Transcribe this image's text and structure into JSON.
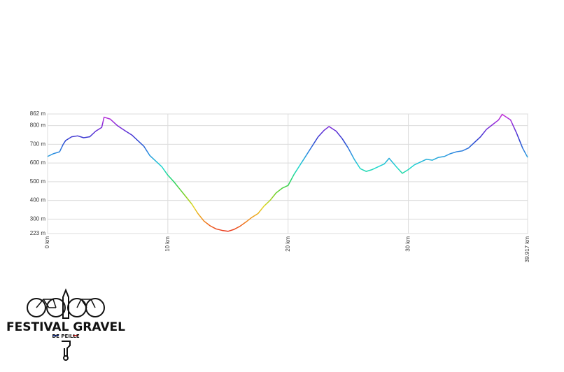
{
  "chart_data": {
    "type": "line",
    "x": [
      0,
      0.5,
      1,
      1.3,
      1.5,
      2,
      2.5,
      3,
      3.5,
      4,
      4.5,
      4.7,
      5.2,
      5.8,
      6.5,
      7,
      7.5,
      8,
      8.5,
      9,
      9.5,
      10,
      10.5,
      11,
      11.5,
      12,
      12.5,
      13,
      13.5,
      14,
      14.5,
      15,
      15.5,
      16,
      16.5,
      17,
      17.5,
      18,
      18.5,
      19,
      19.5,
      20,
      20.5,
      21,
      21.5,
      22,
      22.5,
      23,
      23.4,
      24,
      24.5,
      25,
      25.5,
      26,
      26.5,
      27,
      27.5,
      28,
      28.4,
      29,
      29.5,
      30,
      30.5,
      31,
      31.5,
      32,
      32.5,
      33,
      33.5,
      34,
      34.5,
      35,
      35.5,
      36,
      36.5,
      37,
      37.5,
      37.8,
      38.5,
      39,
      39.5,
      39.917
    ],
    "values": [
      635,
      650,
      660,
      700,
      720,
      740,
      745,
      735,
      740,
      770,
      790,
      845,
      835,
      800,
      770,
      750,
      720,
      690,
      640,
      610,
      580,
      535,
      500,
      460,
      420,
      380,
      330,
      290,
      265,
      248,
      240,
      235,
      245,
      262,
      285,
      310,
      330,
      370,
      400,
      440,
      465,
      480,
      540,
      590,
      640,
      690,
      740,
      775,
      795,
      770,
      730,
      680,
      620,
      570,
      555,
      565,
      580,
      595,
      625,
      580,
      545,
      565,
      590,
      605,
      620,
      615,
      630,
      635,
      650,
      660,
      665,
      680,
      710,
      740,
      780,
      805,
      830,
      860,
      830,
      760,
      680,
      630
    ],
    "line_colors": [
      "#e8251d",
      "#f08a1b",
      "#e4d51f",
      "#6ccf24",
      "#22d66a",
      "#1fd9d0",
      "#2a8fe0",
      "#2a3fd0",
      "#7a2ad8",
      "#c830d8"
    ],
    "xlim": [
      0,
      39.917
    ],
    "ylim": [
      223,
      862
    ],
    "xticks": [
      {
        "value": 0,
        "label": "0 km"
      },
      {
        "value": 10,
        "label": "10 km"
      },
      {
        "value": 20,
        "label": "20 km"
      },
      {
        "value": 30,
        "label": "30 km"
      },
      {
        "value": 39.917,
        "label": "39.917 km"
      }
    ],
    "yticks": [
      {
        "value": 223,
        "label": "223 m"
      },
      {
        "value": 300,
        "label": "300 m"
      },
      {
        "value": 400,
        "label": "400 m"
      },
      {
        "value": 500,
        "label": "500 m"
      },
      {
        "value": 600,
        "label": "600 m"
      },
      {
        "value": 700,
        "label": "700 m"
      },
      {
        "value": 800,
        "label": "800 m"
      },
      {
        "value": 862,
        "label": "862 m"
      }
    ],
    "grid": true
  },
  "logo": {
    "title": "FESTIVAL GRAVEL",
    "subtitle": "DE PEILLE"
  }
}
